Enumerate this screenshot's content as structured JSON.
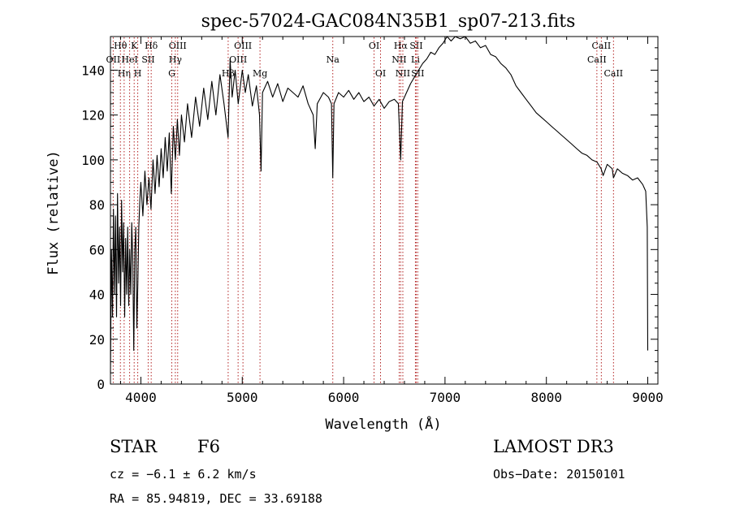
{
  "chart_data": {
    "type": "line",
    "title": "spec-57024-GAC084N35B1_sp07-213.fits",
    "xlabel": "Wavelength (Å)",
    "ylabel": "Flux (relative)",
    "xlim": [
      3700,
      9100
    ],
    "ylim": [
      0,
      155
    ],
    "xticks": [
      4000,
      5000,
      6000,
      7000,
      8000,
      9000
    ],
    "yticks": [
      0,
      20,
      40,
      60,
      80,
      100,
      120,
      140
    ],
    "series": [
      {
        "name": "flux",
        "points": [
          [
            3700,
            5
          ],
          [
            3710,
            60
          ],
          [
            3720,
            30
          ],
          [
            3730,
            78
          ],
          [
            3740,
            40
          ],
          [
            3750,
            75
          ],
          [
            3760,
            30
          ],
          [
            3770,
            85
          ],
          [
            3780,
            45
          ],
          [
            3790,
            70
          ],
          [
            3800,
            35
          ],
          [
            3810,
            82
          ],
          [
            3820,
            50
          ],
          [
            3830,
            72
          ],
          [
            3840,
            30
          ],
          [
            3850,
            65
          ],
          [
            3860,
            40
          ],
          [
            3870,
            70
          ],
          [
            3880,
            35
          ],
          [
            3890,
            60
          ],
          [
            3900,
            40
          ],
          [
            3910,
            72
          ],
          [
            3920,
            55
          ],
          [
            3930,
            15
          ],
          [
            3940,
            60
          ],
          [
            3950,
            70
          ],
          [
            3960,
            25
          ],
          [
            3970,
            45
          ],
          [
            3980,
            70
          ],
          [
            3990,
            82
          ],
          [
            4000,
            90
          ],
          [
            4020,
            75
          ],
          [
            4040,
            95
          ],
          [
            4060,
            80
          ],
          [
            4080,
            92
          ],
          [
            4100,
            78
          ],
          [
            4120,
            100
          ],
          [
            4140,
            85
          ],
          [
            4160,
            102
          ],
          [
            4180,
            88
          ],
          [
            4200,
            105
          ],
          [
            4220,
            92
          ],
          [
            4240,
            110
          ],
          [
            4260,
            95
          ],
          [
            4280,
            112
          ],
          [
            4300,
            85
          ],
          [
            4320,
            115
          ],
          [
            4340,
            100
          ],
          [
            4360,
            118
          ],
          [
            4380,
            102
          ],
          [
            4400,
            120
          ],
          [
            4430,
            108
          ],
          [
            4460,
            125
          ],
          [
            4500,
            110
          ],
          [
            4540,
            128
          ],
          [
            4580,
            115
          ],
          [
            4620,
            132
          ],
          [
            4660,
            118
          ],
          [
            4700,
            135
          ],
          [
            4740,
            120
          ],
          [
            4780,
            138
          ],
          [
            4820,
            125
          ],
          [
            4860,
            110
          ],
          [
            4880,
            145
          ],
          [
            4900,
            128
          ],
          [
            4930,
            140
          ],
          [
            4960,
            125
          ],
          [
            5000,
            140
          ],
          [
            5030,
            130
          ],
          [
            5060,
            138
          ],
          [
            5100,
            124
          ],
          [
            5140,
            133
          ],
          [
            5170,
            120
          ],
          [
            5185,
            95
          ],
          [
            5200,
            130
          ],
          [
            5250,
            135
          ],
          [
            5300,
            128
          ],
          [
            5350,
            134
          ],
          [
            5400,
            126
          ],
          [
            5450,
            132
          ],
          [
            5500,
            130
          ],
          [
            5550,
            128
          ],
          [
            5600,
            133
          ],
          [
            5650,
            125
          ],
          [
            5700,
            120
          ],
          [
            5720,
            105
          ],
          [
            5740,
            125
          ],
          [
            5800,
            130
          ],
          [
            5850,
            128
          ],
          [
            5880,
            125
          ],
          [
            5893,
            92
          ],
          [
            5905,
            125
          ],
          [
            5950,
            130
          ],
          [
            6000,
            128
          ],
          [
            6050,
            131
          ],
          [
            6100,
            127
          ],
          [
            6150,
            130
          ],
          [
            6200,
            126
          ],
          [
            6250,
            128
          ],
          [
            6300,
            124
          ],
          [
            6350,
            127
          ],
          [
            6400,
            123
          ],
          [
            6450,
            126
          ],
          [
            6500,
            127
          ],
          [
            6540,
            125
          ],
          [
            6563,
            100
          ],
          [
            6580,
            126
          ],
          [
            6620,
            130
          ],
          [
            6660,
            134
          ],
          [
            6700,
            137
          ],
          [
            6740,
            140
          ],
          [
            6780,
            143
          ],
          [
            6820,
            145
          ],
          [
            6860,
            148
          ],
          [
            6900,
            147
          ],
          [
            6940,
            150
          ],
          [
            6980,
            152
          ],
          [
            7020,
            155
          ],
          [
            7060,
            153
          ],
          [
            7100,
            156
          ],
          [
            7150,
            154
          ],
          [
            7200,
            155
          ],
          [
            7250,
            152
          ],
          [
            7300,
            153
          ],
          [
            7350,
            150
          ],
          [
            7400,
            151
          ],
          [
            7450,
            147
          ],
          [
            7500,
            146
          ],
          [
            7550,
            143
          ],
          [
            7600,
            141
          ],
          [
            7650,
            138
          ],
          [
            7700,
            133
          ],
          [
            7750,
            130
          ],
          [
            7800,
            127
          ],
          [
            7850,
            124
          ],
          [
            7900,
            121
          ],
          [
            7950,
            119
          ],
          [
            8000,
            117
          ],
          [
            8050,
            115
          ],
          [
            8100,
            113
          ],
          [
            8150,
            111
          ],
          [
            8200,
            109
          ],
          [
            8250,
            107
          ],
          [
            8300,
            105
          ],
          [
            8350,
            103
          ],
          [
            8400,
            102
          ],
          [
            8450,
            100
          ],
          [
            8500,
            99
          ],
          [
            8540,
            96
          ],
          [
            8560,
            93
          ],
          [
            8600,
            98
          ],
          [
            8650,
            96
          ],
          [
            8662,
            92
          ],
          [
            8700,
            96
          ],
          [
            8750,
            94
          ],
          [
            8800,
            93
          ],
          [
            8850,
            91
          ],
          [
            8900,
            92
          ],
          [
            8950,
            89
          ],
          [
            8980,
            86
          ],
          [
            8995,
            70
          ],
          [
            9000,
            15
          ]
        ]
      }
    ],
    "lines": [
      {
        "label": "Hθ",
        "wl": 3798,
        "row": 0
      },
      {
        "label": "OII",
        "wl": 3727,
        "row": 1
      },
      {
        "label": "Hη",
        "wl": 3835,
        "row": 2
      },
      {
        "label": "K",
        "wl": 3934,
        "row": 0
      },
      {
        "label": "HeI",
        "wl": 3889,
        "row": 1
      },
      {
        "label": "H",
        "wl": 3969,
        "row": 2
      },
      {
        "label": "Hδ",
        "wl": 4102,
        "row": 0
      },
      {
        "label": "SII",
        "wl": 4072,
        "row": 1
      },
      {
        "label": "OIII",
        "wl": 4363,
        "row": 0
      },
      {
        "label": "Hγ",
        "wl": 4340,
        "row": 1
      },
      {
        "label": "G",
        "wl": 4305,
        "row": 2
      },
      {
        "label": "OIII",
        "wl": 5007,
        "row": 0
      },
      {
        "label": "OIII",
        "wl": 4959,
        "row": 1
      },
      {
        "label": "Hβ",
        "wl": 4861,
        "row": 2
      },
      {
        "label": "Mg",
        "wl": 5175,
        "row": 2
      },
      {
        "label": "Na",
        "wl": 5893,
        "row": 1
      },
      {
        "label": "OI",
        "wl": 6300,
        "row": 0
      },
      {
        "label": "OI",
        "wl": 6364,
        "row": 2
      },
      {
        "label": "Hα",
        "wl": 6563,
        "row": 0
      },
      {
        "label": "SII",
        "wl": 6716,
        "row": 0
      },
      {
        "label": "NII",
        "wl": 6548,
        "row": 1
      },
      {
        "label": "Li",
        "wl": 6708,
        "row": 1
      },
      {
        "label": "NII",
        "wl": 6584,
        "row": 2
      },
      {
        "label": "SII",
        "wl": 6731,
        "row": 2
      },
      {
        "label": "CaII",
        "wl": 8542,
        "row": 0
      },
      {
        "label": "CaII",
        "wl": 8498,
        "row": 1
      },
      {
        "label": "CaII",
        "wl": 8662,
        "row": 2
      }
    ]
  },
  "info": {
    "class": "STAR",
    "subclass": "F6",
    "survey": "LAMOST DR3",
    "cz": "cz = −6.1 ± 6.2 km/s",
    "obsdate": "Obs−Date: 20150101",
    "radec": "RA =  85.94819, DEC =  33.69188"
  },
  "colors": {
    "line_marker": "#b22222",
    "spectrum": "#000000",
    "axis": "#000000"
  }
}
